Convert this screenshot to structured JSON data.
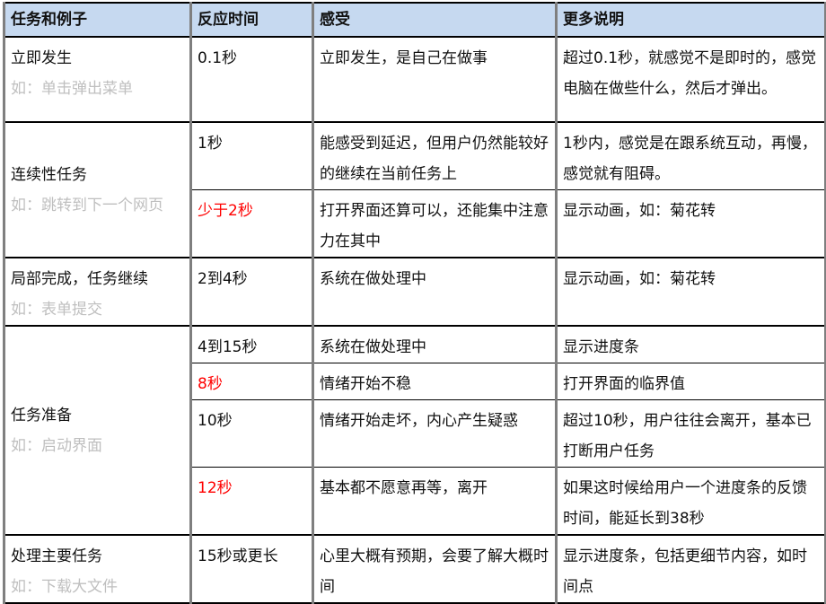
{
  "headers": [
    "任务和例子",
    "反应时间",
    "感受",
    "更多说明"
  ],
  "colors": {
    "header_bg": "#c6d9f0",
    "highlight": "#ff0000",
    "example": "#bfbfbf"
  },
  "rows": [
    {
      "task": "立即发生",
      "example": "如：单击弹出菜单",
      "items": [
        {
          "time": "0.1秒",
          "red": false,
          "feeling": "立即发生，是自己在做事",
          "note": "超过0.1秒，就感觉不是即时的，感觉电脑在做些什么，然后才弹出。"
        }
      ]
    },
    {
      "task": "连续性任务",
      "example": "如：跳转到下一个网页",
      "items": [
        {
          "time": "1秒",
          "red": false,
          "feeling": "能感受到延迟，但用户仍然能较好的继续在当前任务上",
          "note": "1秒内，感觉是在跟系统互动，再慢，感觉就有阻碍。"
        },
        {
          "time": "少于2秒",
          "red": true,
          "feeling": "打开界面还算可以，还能集中注意力在其中",
          "note": "显示动画，如：菊花转"
        }
      ]
    },
    {
      "task": "局部完成，任务继续",
      "example": "如：表单提交",
      "items": [
        {
          "time": "2到4秒",
          "red": false,
          "feeling": "系统在做处理中",
          "note": "显示动画，如：菊花转"
        }
      ]
    },
    {
      "task": "任务准备",
      "example": "如：启动界面",
      "items": [
        {
          "time": "4到15秒",
          "red": false,
          "feeling": "系统在做处理中",
          "note": "显示进度条"
        },
        {
          "time": "8秒",
          "red": true,
          "feeling": "情绪开始不稳",
          "note": "打开界面的临界值"
        },
        {
          "time": "10秒",
          "red": false,
          "feeling": "情绪开始走坏，内心产生疑惑",
          "note": "超过10秒，用户往往会离开，基本已打断用户任务"
        },
        {
          "time": "12秒",
          "red": true,
          "feeling": "基本都不愿意再等，离开",
          "note": "如果这时候给用户一个进度条的反馈时间，能延长到38秒"
        }
      ]
    },
    {
      "task": "处理主要任务",
      "example": "如：下载大文件",
      "items": [
        {
          "time": "15秒或更长",
          "red": false,
          "feeling": "心里大概有预期，会要了解大概时间",
          "note": "显示进度条，包括更细节内容，如时间点"
        }
      ]
    }
  ]
}
